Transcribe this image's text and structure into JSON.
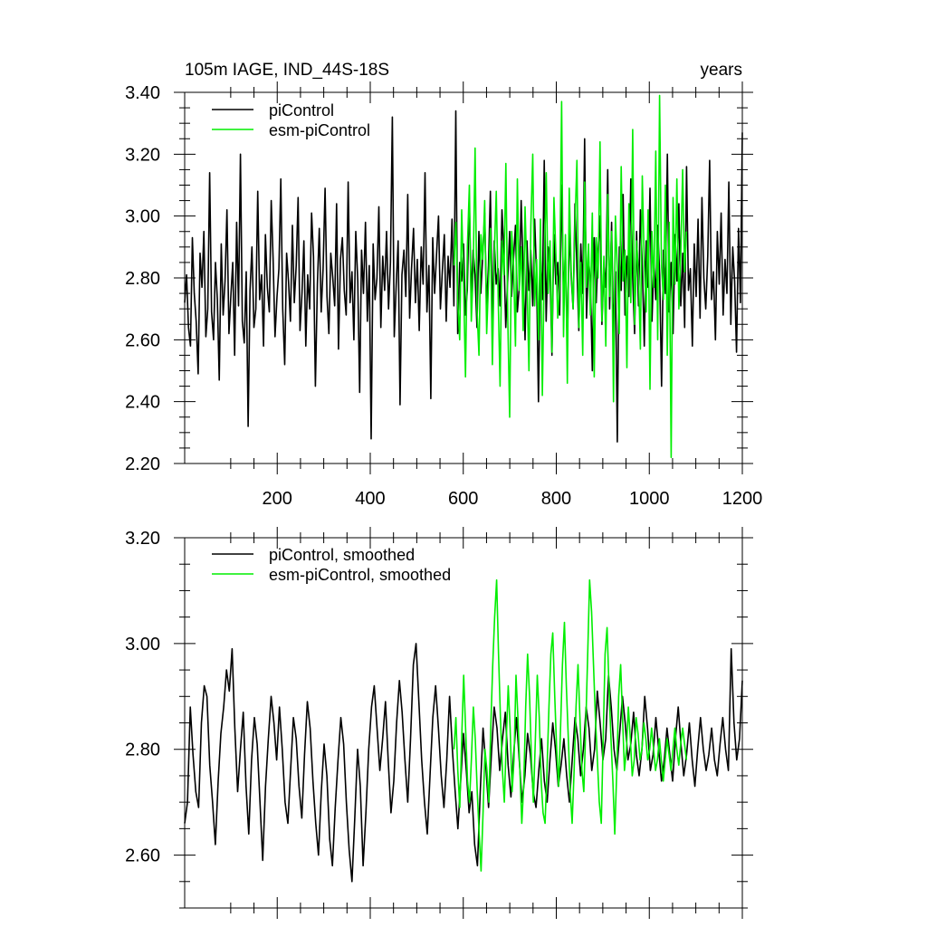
{
  "chart_data": [
    {
      "type": "line",
      "title": "105m IAGE, IND_44S-18S",
      "right_title": "years",
      "xlim": [
        1,
        1200
      ],
      "ylim": [
        2.2,
        3.4
      ],
      "x_ticks": [
        200,
        400,
        600,
        800,
        1000,
        1200
      ],
      "x_tick_labels": [
        "200",
        "400",
        "600",
        "800",
        "1000",
        "1200"
      ],
      "y_ticks": [
        2.2,
        2.4,
        2.6,
        2.8,
        3.0,
        3.2,
        3.4
      ],
      "y_tick_labels": [
        "2.20",
        "2.40",
        "2.60",
        "2.80",
        "3.00",
        "3.20",
        "3.40"
      ],
      "legend_position": "top-left",
      "grid": false,
      "series": [
        {
          "name": "piControl",
          "color": "#000000",
          "x_start": 1,
          "x_end": 1200,
          "values": [
            2.72,
            2.81,
            2.64,
            2.58,
            2.93,
            2.75,
            2.66,
            2.49,
            2.88,
            2.77,
            2.95,
            2.61,
            2.7,
            3.14,
            2.69,
            2.6,
            2.85,
            2.73,
            2.47,
            2.91,
            2.68,
            2.79,
            3.02,
            2.62,
            2.74,
            2.85,
            2.55,
            2.98,
            2.71,
            3.2,
            2.66,
            2.59,
            2.82,
            2.32,
            2.76,
            2.9,
            2.64,
            2.7,
            3.08,
            2.73,
            2.81,
            2.58,
            2.94,
            2.77,
            2.69,
            3.05,
            2.86,
            2.61,
            2.74,
            2.83,
            3.12,
            2.7,
            2.52,
            2.88,
            2.79,
            2.66,
            2.97,
            2.72,
            2.84,
            3.06,
            2.63,
            2.75,
            2.92,
            2.58,
            2.81,
            2.7,
            3.01,
            2.87,
            2.45,
            2.78,
            2.96,
            2.69,
            2.83,
            3.09,
            2.74,
            2.62,
            2.88,
            2.8,
            2.71,
            3.04,
            2.57,
            2.86,
            2.93,
            2.76,
            2.68,
            3.11,
            2.72,
            2.82,
            2.6,
            2.95,
            2.79,
            2.43,
            2.89,
            2.75,
            2.98,
            2.66,
            2.84,
            2.28,
            2.91,
            2.73,
            2.8,
            3.03,
            2.64,
            2.87,
            2.76,
            2.95,
            2.7,
            2.85,
            3.32,
            2.61,
            2.78,
            2.92,
            2.39,
            2.81,
            2.89,
            2.74,
            3.07,
            2.67,
            2.83,
            2.96,
            2.72,
            2.86,
            2.63,
            2.9,
            2.78,
            3.14,
            2.69,
            2.84,
            2.41,
            2.93,
            2.75,
            2.88,
            3.0,
            2.7,
            2.82,
            2.94,
            2.66,
            2.87,
            2.77,
            2.99,
            2.71,
            3.34,
            2.62,
            2.85,
            2.79,
            2.91,
            2.68,
            2.76,
            3.06,
            2.73,
            2.89,
            2.81,
            2.64,
            2.95,
            2.75,
            2.87,
            3.01,
            2.7,
            2.84,
            3.08,
            2.66,
            2.92,
            2.78,
            2.83,
            2.71,
            3.02,
            2.88,
            2.64,
            2.8,
            2.95,
            2.74,
            2.86,
            2.97,
            2.69,
            2.77,
            3.05,
            2.83,
            2.6,
            2.92,
            2.76,
            2.89,
            2.71,
            2.99,
            2.81,
            2.4,
            2.87,
            2.73,
            3.18,
            2.66,
            2.9,
            2.82,
            2.55,
            2.94,
            2.78,
            2.85,
            2.68,
            3.1,
            2.74,
            2.88,
            2.57,
            2.96,
            2.8,
            2.7,
            3.04,
            2.83,
            2.63,
            2.91,
            2.75,
            3.25,
            2.67,
            2.86,
            2.79,
            2.5,
            2.93,
            2.72,
            2.89,
            3.0,
            2.65,
            2.84,
            2.77,
            3.15,
            2.7,
            2.98,
            2.61,
            2.82,
            2.27,
            2.9,
            2.76,
            3.07,
            2.68,
            2.87,
            2.74,
            3.12,
            2.8,
            2.62,
            2.95,
            2.71,
            3.02,
            2.84,
            2.58,
            2.92,
            2.77,
            3.09,
            2.66,
            2.86,
            2.73,
            2.97,
            2.81,
            2.45,
            2.89,
            2.75,
            3.2,
            2.69,
            2.85,
            2.62,
            2.94,
            2.79,
            3.04,
            2.71,
            2.88,
            2.64,
            3.16,
            2.76,
            2.83,
            2.58,
            2.91,
            2.74,
            2.99,
            2.67,
            3.06,
            2.8,
            2.7,
            2.87,
            3.18,
            2.73,
            2.82,
            2.6,
            2.95,
            2.78,
            3.01,
            2.68,
            2.86,
            2.75,
            3.11,
            2.65,
            2.9,
            2.79,
            2.56,
            2.96,
            2.72,
            3.27
          ]
        },
        {
          "name": "esm-piControl",
          "color": "#00ee00",
          "x_start": 580,
          "x_end": 1080,
          "values": [
            2.84,
            2.98,
            2.72,
            2.6,
            3.02,
            2.78,
            2.48,
            2.9,
            3.1,
            2.66,
            2.82,
            3.22,
            2.7,
            2.55,
            2.94,
            2.86,
            3.05,
            2.62,
            2.79,
            2.96,
            2.52,
            2.88,
            3.08,
            2.74,
            2.45,
            2.92,
            2.81,
            3.17,
            2.67,
            2.35,
            2.95,
            2.84,
            2.58,
            3.12,
            2.76,
            2.9,
            2.63,
            3.03,
            2.8,
            2.5,
            2.97,
            3.2,
            2.71,
            2.86,
            2.6,
            2.99,
            2.42,
            2.83,
            3.14,
            2.75,
            2.92,
            2.56,
            3.06,
            2.88,
            2.67,
            2.78,
            3.37,
            2.61,
            2.94,
            2.46,
            3.09,
            2.82,
            2.7,
            2.98,
            3.18,
            2.64,
            2.85,
            2.55,
            3.11,
            2.77,
            2.91,
            2.68,
            3.01,
            2.48,
            2.93,
            2.8,
            3.24,
            2.66,
            2.87,
            2.58,
            3.07,
            2.74,
            2.95,
            2.4,
            3.0,
            2.83,
            2.62,
            3.16,
            2.79,
            2.89,
            2.51,
            3.04,
            2.72,
            3.28,
            2.65,
            2.92,
            2.81,
            2.57,
            3.13,
            2.86,
            2.69,
            3.02,
            2.44,
            2.95,
            2.77,
            3.21,
            2.6,
            3.39,
            2.84,
            2.73,
            3.1,
            2.55,
            2.98,
            2.22,
            3.06,
            2.78,
            3.12,
            2.7,
            2.88,
            3.15,
            2.82,
            2.95
          ]
        }
      ]
    },
    {
      "type": "line",
      "title": "",
      "xlim": [
        1,
        1200
      ],
      "ylim": [
        2.5,
        3.2
      ],
      "x_ticks": [
        200,
        400,
        600,
        800,
        1000,
        1200
      ],
      "y_ticks": [
        2.6,
        2.8,
        3.0,
        3.2
      ],
      "y_tick_labels": [
        "2.60",
        "2.80",
        "3.00",
        "3.20"
      ],
      "legend_position": "top-left",
      "grid": false,
      "series": [
        {
          "name": "piControl, smoothed",
          "color": "#000000",
          "x_start": 1,
          "x_end": 1200,
          "values": [
            2.66,
            2.7,
            2.88,
            2.79,
            2.72,
            2.69,
            2.85,
            2.92,
            2.9,
            2.77,
            2.7,
            2.62,
            2.74,
            2.83,
            2.88,
            2.95,
            2.91,
            2.99,
            2.84,
            2.72,
            2.8,
            2.87,
            2.73,
            2.64,
            2.78,
            2.86,
            2.81,
            2.7,
            2.59,
            2.73,
            2.82,
            2.9,
            2.85,
            2.78,
            2.88,
            2.8,
            2.7,
            2.66,
            2.76,
            2.86,
            2.82,
            2.73,
            2.67,
            2.79,
            2.89,
            2.84,
            2.74,
            2.66,
            2.6,
            2.72,
            2.81,
            2.75,
            2.63,
            2.58,
            2.69,
            2.78,
            2.86,
            2.81,
            2.7,
            2.61,
            2.55,
            2.67,
            2.8,
            2.73,
            2.58,
            2.68,
            2.8,
            2.88,
            2.92,
            2.84,
            2.76,
            2.82,
            2.89,
            2.78,
            2.68,
            2.74,
            2.85,
            2.93,
            2.87,
            2.78,
            2.7,
            2.82,
            2.96,
            3.0,
            2.89,
            2.78,
            2.7,
            2.64,
            2.75,
            2.86,
            2.92,
            2.84,
            2.75,
            2.69,
            2.78,
            2.9,
            2.8,
            2.72,
            2.65,
            2.74,
            2.83,
            2.76,
            2.68,
            2.72,
            2.62,
            2.58,
            2.72,
            2.84,
            2.77,
            2.69,
            2.79,
            2.88,
            2.84,
            2.76,
            2.82,
            2.87,
            2.77,
            2.71,
            2.79,
            2.86,
            2.78,
            2.7,
            2.75,
            2.83,
            2.79,
            2.72,
            2.69,
            2.76,
            2.82,
            2.74,
            2.7,
            2.78,
            2.85,
            2.8,
            2.73,
            2.77,
            2.82,
            2.75,
            2.7,
            2.78,
            2.86,
            2.82,
            2.75,
            2.8,
            2.88,
            2.84,
            2.76,
            2.8,
            2.91,
            2.85,
            2.78,
            2.82,
            2.94,
            2.88,
            2.8,
            2.76,
            2.83,
            2.9,
            2.85,
            2.78,
            2.81,
            2.87,
            2.79,
            2.75,
            2.8,
            2.9,
            2.84,
            2.76,
            2.79,
            2.86,
            2.8,
            2.74,
            2.78,
            2.84,
            2.79,
            2.74,
            2.82,
            2.88,
            2.81,
            2.75,
            2.79,
            2.85,
            2.78,
            2.73,
            2.8,
            2.86,
            2.8,
            2.76,
            2.79,
            2.84,
            2.78,
            2.75,
            2.81,
            2.86,
            2.8,
            2.76,
            2.99,
            2.85,
            2.78,
            2.82,
            2.93
          ]
        },
        {
          "name": "esm-piControl, smoothed",
          "color": "#00ee00",
          "x_start": 580,
          "x_end": 1080,
          "values": [
            2.8,
            2.86,
            2.76,
            2.69,
            2.82,
            2.94,
            2.84,
            2.74,
            2.7,
            2.78,
            2.88,
            2.82,
            2.72,
            2.64,
            2.57,
            2.68,
            2.8,
            2.76,
            2.7,
            2.84,
            2.96,
            3.05,
            3.12,
            2.98,
            2.86,
            2.76,
            2.7,
            2.82,
            2.92,
            2.84,
            2.72,
            2.78,
            2.94,
            2.86,
            2.76,
            2.66,
            2.73,
            2.88,
            2.98,
            2.9,
            2.78,
            2.7,
            2.82,
            2.94,
            2.86,
            2.74,
            2.68,
            2.66,
            2.76,
            2.88,
            2.98,
            3.02,
            2.9,
            2.8,
            2.73,
            2.84,
            2.96,
            3.04,
            2.92,
            2.82,
            2.72,
            2.66,
            2.76,
            2.88,
            2.96,
            2.86,
            2.76,
            2.72,
            2.84,
            2.98,
            3.12,
            3.06,
            2.96,
            2.86,
            2.78,
            2.7,
            2.66,
            2.82,
            2.98,
            3.03,
            2.92,
            2.82,
            2.74,
            2.64,
            2.76,
            2.9,
            2.96,
            2.86,
            2.76,
            2.8,
            2.88,
            2.82,
            2.75,
            2.78,
            2.86,
            2.83,
            2.78,
            2.8,
            2.85,
            2.82,
            2.78,
            2.8,
            2.84,
            2.8,
            2.76,
            2.78,
            2.82,
            2.78,
            2.74,
            2.78,
            2.82,
            2.79,
            2.76,
            2.8,
            2.84,
            2.8,
            2.77,
            2.81,
            2.84,
            2.81,
            2.78
          ]
        }
      ]
    }
  ]
}
